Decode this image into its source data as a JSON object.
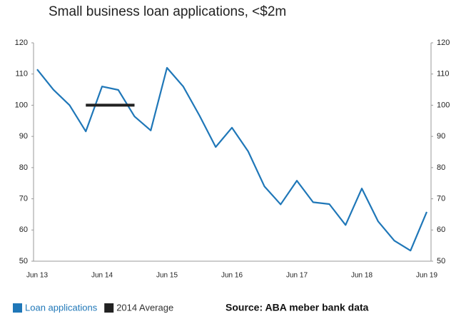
{
  "chart_data": {
    "type": "line",
    "title": "Small business loan applications, <$2m",
    "source": "Source: ABA meber bank data",
    "categories": [
      "Jun 13",
      null,
      null,
      null,
      "Jun 14",
      null,
      null,
      null,
      "Jun 15",
      null,
      null,
      null,
      "Jun 16",
      null,
      null,
      null,
      "Jun 17",
      null,
      null,
      null,
      "Jun 18",
      null,
      null,
      null,
      "Jun 19"
    ],
    "series": [
      {
        "name": "Loan applications",
        "color": "#1f77b8",
        "values": [
          111.5,
          105,
          100,
          91.6,
          106,
          104.9,
          96.4,
          91.9,
          112,
          106,
          96.7,
          86.6,
          92.8,
          85.2,
          74,
          68.2,
          75.8,
          68.9,
          68.3,
          61.6,
          73.3,
          62.8,
          56.6,
          53.4,
          65.8
        ]
      },
      {
        "name": "2014 Average",
        "color": "#222222",
        "values": [
          null,
          null,
          null,
          100,
          100,
          100,
          100,
          null,
          null,
          null,
          null,
          null,
          null,
          null,
          null,
          null,
          null,
          null,
          null,
          null,
          null,
          null,
          null,
          null,
          null
        ]
      }
    ],
    "ylim": [
      50,
      120
    ],
    "yticks": [
      50,
      60,
      70,
      80,
      90,
      100,
      110,
      120
    ],
    "y2lim": [
      50,
      120
    ],
    "y2ticks": [
      50,
      60,
      70,
      80,
      90,
      100,
      110,
      120
    ]
  }
}
